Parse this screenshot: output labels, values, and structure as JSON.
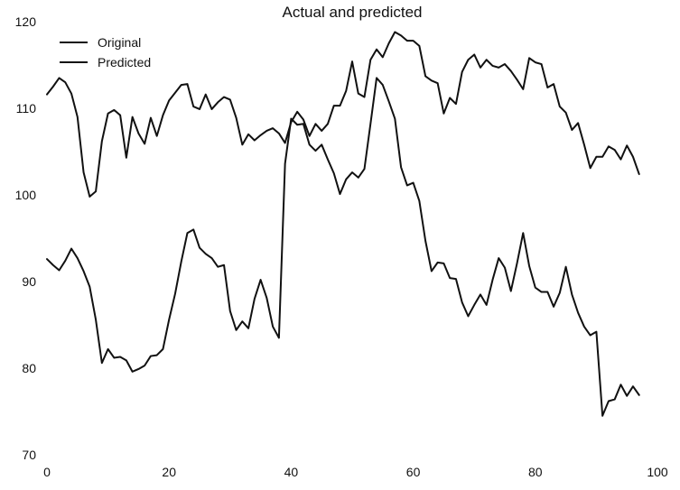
{
  "chart_data": {
    "type": "line",
    "title": "Actual and predicted",
    "xlim": [
      0,
      100
    ],
    "ylim": [
      70,
      120
    ],
    "x_ticks": [
      "0",
      "20",
      "40",
      "60",
      "80",
      "100"
    ],
    "y_ticks": [
      "70",
      "80",
      "90",
      "100",
      "110",
      "120"
    ],
    "grid": false,
    "legend_position": "top-left",
    "line_color": "#111111",
    "series": [
      {
        "name": "Original",
        "values": [
          92.6,
          91.9,
          91.3,
          92.4,
          93.8,
          92.7,
          91.2,
          89.4,
          85.6,
          80.6,
          82.2,
          81.2,
          81.3,
          80.9,
          79.6,
          79.9,
          80.3,
          81.4,
          81.5,
          82.2,
          85.6,
          88.6,
          92.3,
          95.6,
          96.0,
          93.9,
          93.2,
          92.7,
          91.7,
          91.9,
          86.6,
          84.4,
          85.4,
          84.6,
          88.0,
          90.2,
          88.1,
          84.8,
          83.5,
          103.6,
          108.8,
          108.1,
          108.2,
          105.8,
          105.1,
          105.8,
          104.1,
          102.5,
          100.1,
          101.8,
          102.6,
          102.0,
          103.0,
          108.2,
          113.5,
          112.7,
          110.8,
          108.8,
          103.2,
          101.1,
          101.4,
          99.3,
          94.7,
          91.2,
          92.2,
          92.1,
          90.4,
          90.3,
          87.6,
          86.0,
          87.3,
          88.5,
          87.3,
          90.2,
          92.7,
          91.6,
          88.9,
          92.1,
          95.6,
          91.8,
          89.3,
          88.8,
          88.8,
          87.1,
          88.7,
          91.7,
          88.5,
          86.4,
          84.8,
          83.8,
          84.2,
          74.5,
          76.2,
          76.4,
          78.1,
          76.8,
          77.9,
          76.9
        ]
      },
      {
        "name": "Predicted",
        "values": [
          111.6,
          112.5,
          113.5,
          113.0,
          111.7,
          109.0,
          102.6,
          99.8,
          100.4,
          106.2,
          109.4,
          109.8,
          109.2,
          104.3,
          109.0,
          107.1,
          105.9,
          108.9,
          106.8,
          109.2,
          110.9,
          111.8,
          112.7,
          112.8,
          110.2,
          109.9,
          111.6,
          109.9,
          110.7,
          111.3,
          111.0,
          108.9,
          105.8,
          107.0,
          106.3,
          106.9,
          107.4,
          107.7,
          107.1,
          106.0,
          108.4,
          109.6,
          108.7,
          106.8,
          108.2,
          107.4,
          108.2,
          110.3,
          110.3,
          112.0,
          115.4,
          111.7,
          111.3,
          115.6,
          116.8,
          115.9,
          117.5,
          118.8,
          118.4,
          117.8,
          117.8,
          117.2,
          113.7,
          113.2,
          112.9,
          109.4,
          111.2,
          110.5,
          114.2,
          115.6,
          116.2,
          114.7,
          115.6,
          114.9,
          114.7,
          115.1,
          114.3,
          113.3,
          112.2,
          115.8,
          115.3,
          115.1,
          112.4,
          112.8,
          110.2,
          109.5,
          107.5,
          108.3,
          105.8,
          103.1,
          104.4,
          104.4,
          105.6,
          105.2,
          104.1,
          105.7,
          104.4,
          102.4
        ]
      }
    ]
  }
}
